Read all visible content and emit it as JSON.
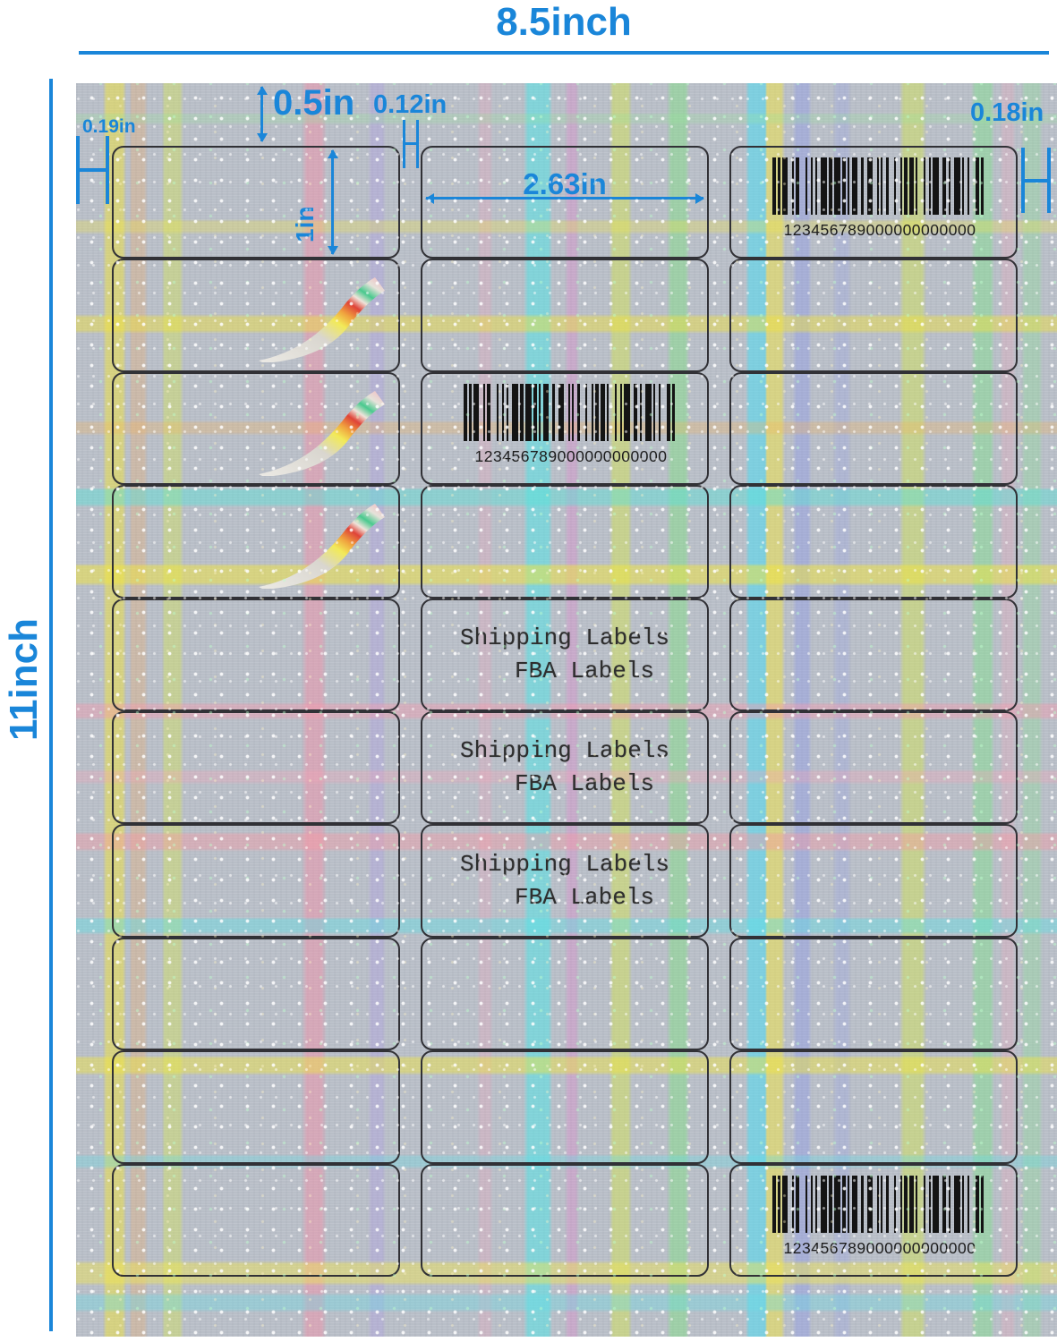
{
  "dimensions": {
    "sheet_width": "8.5inch",
    "sheet_height": "11inch",
    "left_margin": "0.19in",
    "top_margin": "0.5in",
    "column_gap": "0.12in",
    "right_margin": "0.18in",
    "label_height": "1in",
    "label_width": "2.63in"
  },
  "sheet": {
    "rows": 10,
    "columns": 3,
    "barcode_text": "123456789000000000000",
    "print_line1": "Shipping Labels",
    "print_line2": "FBA Labels"
  },
  "colors": {
    "annotation_blue": "#1a86d9",
    "label_border": "#313136",
    "sheet_base": "#bcc1ca"
  }
}
